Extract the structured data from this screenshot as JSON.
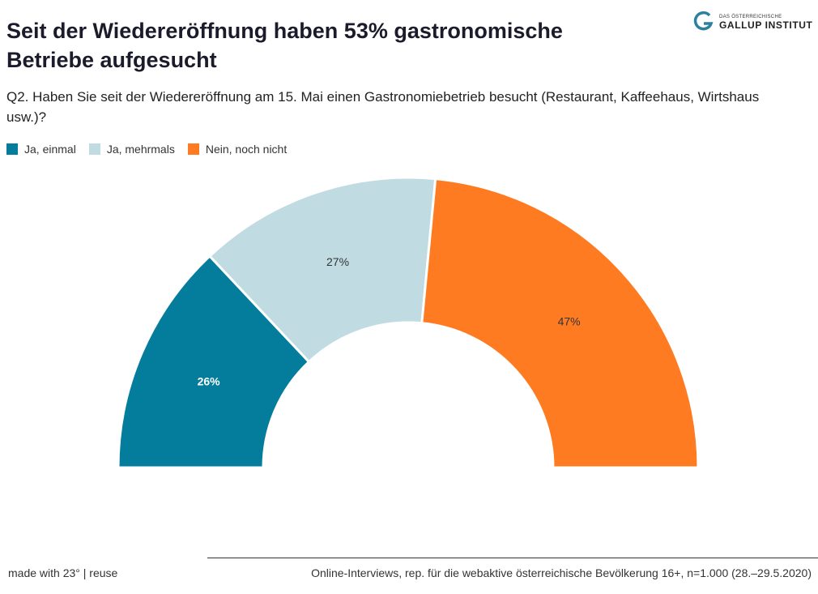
{
  "header": {
    "title": "Seit der Wiedereröffnung haben 53% gastronomische Betriebe aufgesucht",
    "subtitle": "Q2. Haben Sie seit der Wiedereröffnung am 15. Mai einen Gastronomiebetrieb besucht (Restaurant, Kaffeehaus, Wirtshaus usw.)?"
  },
  "logo": {
    "small_text": "DAS ÖSTERREICHISCHE",
    "big_text": "GALLUP INSTITUT",
    "icon": "gallup-logo-icon",
    "color": "#2f7f9e"
  },
  "chart_data": {
    "type": "pie",
    "variant": "semicircle-donut",
    "categories": [
      "Ja, einmal",
      "Ja, mehrmals",
      "Nein, noch nicht"
    ],
    "values": [
      26,
      27,
      47
    ],
    "labels": [
      "26%",
      "27%",
      "47%"
    ],
    "colors": [
      "#047d9c",
      "#c0dce2",
      "#ff7b22"
    ],
    "label_colors": [
      "#ffffff",
      "#333333",
      "#333333"
    ],
    "legend_position": "top-left",
    "unit": "%"
  },
  "footer": {
    "credit": "made with 23° | reuse",
    "source": "Online-Interviews, rep. für die webaktive österreichische Bevölkerung 16+, n=1.000 (28.–29.5.2020)"
  }
}
